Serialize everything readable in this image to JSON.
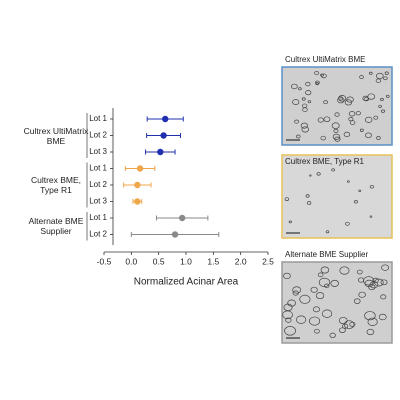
{
  "chart_data": {
    "type": "errorbar",
    "xlabel": "Normalized Acinar Area",
    "xlim": [
      -0.5,
      2.5
    ],
    "xticks": [
      -0.5,
      {
        "value": 0,
        "label": "0.0"
      },
      0.5,
      {
        "value": 1,
        "label": "1.0"
      },
      1.5,
      {
        "value": 2,
        "label": "2.0"
      },
      2.5
    ],
    "groups": [
      {
        "name": "Cultrex UltiMatrix BME",
        "color": "#1f2fb0",
        "categories": [
          "Lot 1",
          "Lot 2",
          "Lot 3"
        ],
        "values": [
          0.62,
          0.59,
          0.53
        ],
        "errors": [
          0.33,
          0.31,
          0.27
        ]
      },
      {
        "name": "Cultrex BME, Type R1",
        "color": "#f0a64a",
        "categories": [
          "Lot 1",
          "Lot 2",
          "Lot 3"
        ],
        "values": [
          0.16,
          0.11,
          0.11
        ],
        "errors": [
          0.27,
          0.25,
          0.08
        ]
      },
      {
        "name": "Alternate BME Supplier",
        "color": "#8a8a8a",
        "categories": [
          "Lot 1",
          "Lot 2"
        ],
        "values": [
          0.93,
          0.8
        ],
        "errors": [
          0.47,
          0.8
        ]
      }
    ]
  },
  "panels": [
    {
      "title": "Cultrex UltiMatrix BME",
      "border": "#5b8fc7"
    },
    {
      "title": "Cultrex BME, Type R1",
      "border": "#e8c15a"
    },
    {
      "title": "Alternate BME Supplier",
      "border": "#9a9a9a"
    }
  ]
}
